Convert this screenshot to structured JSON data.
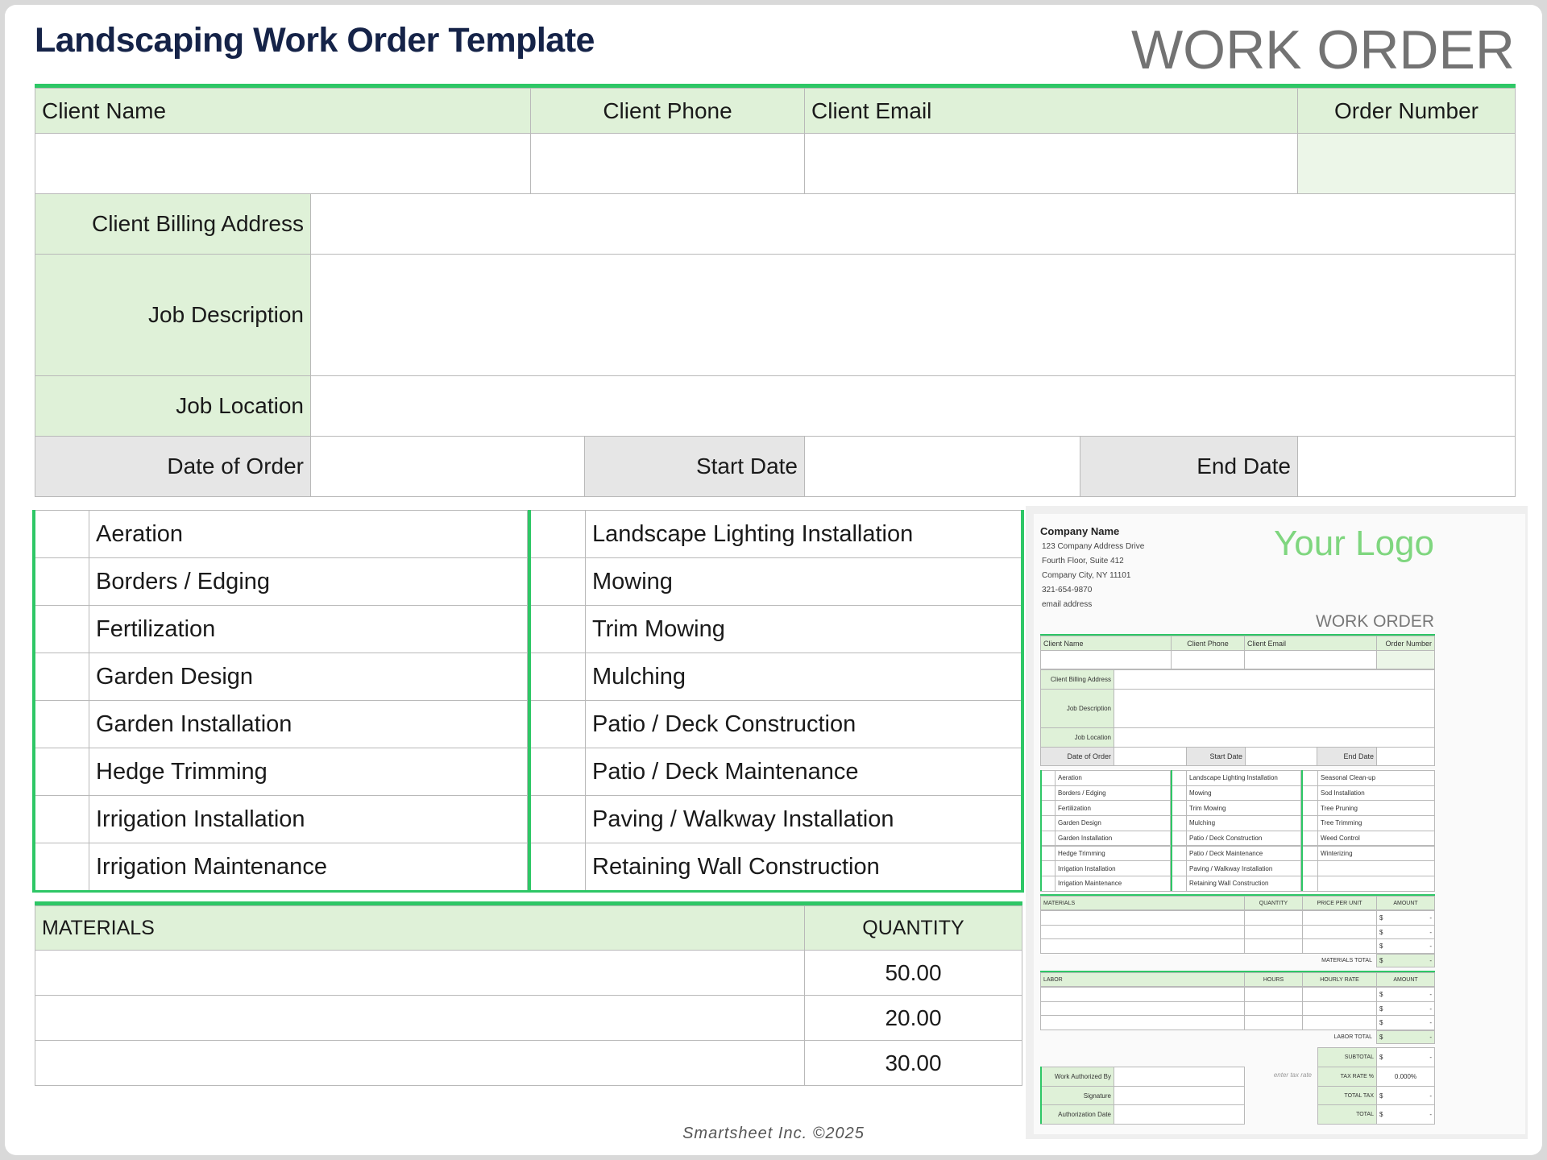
{
  "title": "Landscaping Work Order Template",
  "work_order_heading": "WORK ORDER",
  "form": {
    "client_name": "Client Name",
    "client_phone": "Client Phone",
    "client_email": "Client Email",
    "order_number": "Order Number",
    "billing_address": "Client Billing Address",
    "job_description": "Job Description",
    "job_location": "Job Location",
    "date_of_order": "Date of Order",
    "start_date": "Start Date",
    "end_date": "End Date"
  },
  "services": {
    "col1": [
      "Aeration",
      "Borders / Edging",
      "Fertilization",
      "Garden Design",
      "Garden Installation",
      "Hedge Trimming",
      "Irrigation Installation",
      "Irrigation Maintenance"
    ],
    "col2": [
      "Landscape Lighting Installation",
      "Mowing",
      "Trim Mowing",
      "Mulching",
      "Patio / Deck Construction",
      "Patio / Deck Maintenance",
      "Paving / Walkway Installation",
      "Retaining Wall Construction"
    ],
    "col3": [
      "Seasonal Clean-up",
      "Sod Installation",
      "Tree Pruning",
      "Tree Trimming",
      "Weed Control",
      "Winterizing",
      "",
      ""
    ]
  },
  "materials": {
    "header": "MATERIALS",
    "quantity_header": "QUANTITY",
    "quantities": [
      "50.00",
      "20.00",
      "30.00"
    ]
  },
  "footer": "Smartsheet Inc. ©2025",
  "thumbnail": {
    "company_name": "Company Name",
    "address_lines": [
      "123 Company Address Drive",
      "Fourth Floor, Suite 412",
      "Company City, NY  11101",
      "321-654-9870",
      "email address"
    ],
    "logo": "Your Logo",
    "work_order": "WORK ORDER",
    "price_per_unit": "PRICE PER UNIT",
    "amount": "AMOUNT",
    "materials_total": "MATERIALS TOTAL",
    "labor": "LABOR",
    "hours": "HOURS",
    "hourly_rate": "HOURLY RATE",
    "labor_total": "LABOR TOTAL",
    "currency": "$",
    "dash": "-",
    "subtotal": "SUBTOTAL",
    "tax_rate": "TAX RATE %",
    "tax_rate_value": "0.000%",
    "total_tax": "TOTAL TAX",
    "total": "TOTAL",
    "enter_tax_rate": "enter tax rate",
    "work_authorized_by": "Work Authorized By",
    "signature": "Signature",
    "authorization_date": "Authorization Date"
  },
  "colors": {
    "accent_green": "#2ec766",
    "header_fill": "#dff1d8",
    "logo_green": "#7fd67f",
    "title_navy": "#152348"
  }
}
